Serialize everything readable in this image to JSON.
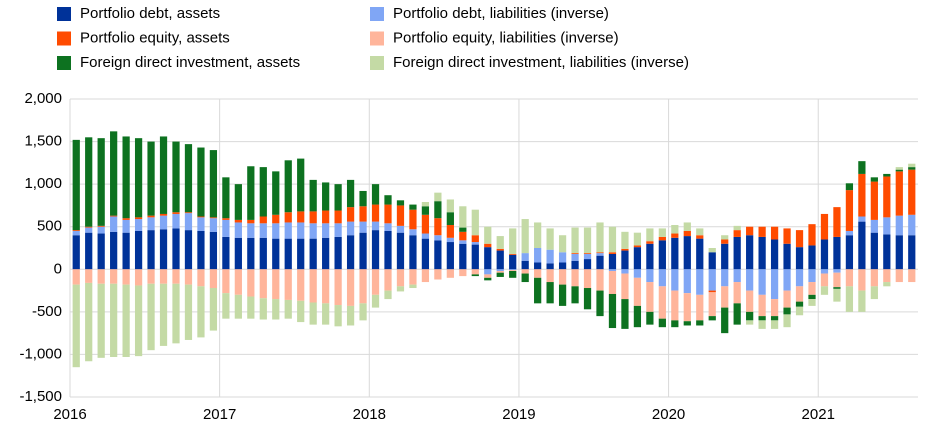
{
  "chart_data": {
    "type": "bar",
    "stacked": true,
    "categories": [
      "2016",
      null,
      null,
      null,
      null,
      null,
      null,
      null,
      null,
      null,
      null,
      null,
      "2017",
      null,
      null,
      null,
      null,
      null,
      null,
      null,
      null,
      null,
      null,
      null,
      "2018",
      null,
      null,
      null,
      null,
      null,
      null,
      null,
      null,
      null,
      null,
      null,
      "2019",
      null,
      null,
      null,
      null,
      null,
      null,
      null,
      null,
      null,
      null,
      null,
      "2020",
      null,
      null,
      null,
      null,
      null,
      null,
      null,
      null,
      null,
      null,
      null,
      "2021",
      null,
      null,
      null,
      null,
      null,
      null,
      null
    ],
    "series": [
      {
        "name": "Portfolio debt, assets",
        "color": "#003299",
        "values": [
          400,
          430,
          420,
          440,
          430,
          450,
          460,
          470,
          480,
          460,
          450,
          440,
          380,
          370,
          370,
          370,
          360,
          360,
          360,
          360,
          370,
          380,
          400,
          430,
          460,
          450,
          430,
          400,
          360,
          340,
          320,
          300,
          290,
          260,
          220,
          170,
          100,
          80,
          70,
          80,
          100,
          120,
          160,
          180,
          220,
          260,
          300,
          340,
          370,
          390,
          360,
          200,
          300,
          380,
          400,
          380,
          350,
          300,
          260,
          280,
          350,
          380,
          400,
          560,
          430,
          410,
          400,
          400
        ]
      },
      {
        "name": "Portfolio debt, liabilities (inverse)",
        "color": "#80a6f5",
        "values": [
          50,
          60,
          80,
          180,
          150,
          140,
          150,
          160,
          170,
          200,
          160,
          160,
          200,
          180,
          170,
          170,
          180,
          190,
          190,
          180,
          170,
          160,
          160,
          130,
          100,
          90,
          80,
          70,
          60,
          60,
          50,
          40,
          30,
          -60,
          -20,
          -10,
          90,
          170,
          160,
          120,
          80,
          60,
          30,
          -20,
          -50,
          -100,
          -150,
          -200,
          -250,
          -280,
          -300,
          -250,
          -200,
          -150,
          -250,
          -300,
          -350,
          -250,
          -200,
          -150,
          -50,
          -40,
          50,
          60,
          150,
          200,
          230,
          240
        ]
      },
      {
        "name": "Portfolio equity, assets",
        "color": "#ff4b00",
        "values": [
          10,
          10,
          10,
          10,
          20,
          20,
          20,
          20,
          20,
          10,
          10,
          10,
          20,
          30,
          40,
          80,
          100,
          120,
          130,
          140,
          150,
          150,
          170,
          180,
          200,
          220,
          240,
          230,
          220,
          200,
          150,
          100,
          80,
          40,
          20,
          10,
          0,
          0,
          0,
          0,
          10,
          10,
          10,
          20,
          20,
          20,
          30,
          40,
          50,
          60,
          40,
          -20,
          50,
          80,
          100,
          120,
          150,
          180,
          200,
          250,
          300,
          350,
          480,
          500,
          450,
          480,
          520,
          530
        ]
      },
      {
        "name": "Portfolio equity, liabilities (inverse)",
        "color": "#ffb59b",
        "values": [
          -180,
          -160,
          -170,
          -170,
          -180,
          -190,
          -170,
          -170,
          -170,
          -180,
          -200,
          -220,
          -280,
          -300,
          -320,
          -340,
          -350,
          -360,
          -370,
          -390,
          -400,
          -420,
          -430,
          -400,
          -300,
          -250,
          -200,
          -180,
          -150,
          -120,
          -100,
          -80,
          -60,
          -40,
          -20,
          -10,
          -50,
          -100,
          -150,
          -180,
          -200,
          -220,
          -250,
          -270,
          -300,
          -330,
          -350,
          -380,
          -350,
          -330,
          -300,
          -280,
          -250,
          -250,
          -250,
          -250,
          -200,
          -200,
          -180,
          -150,
          -150,
          -170,
          -200,
          -250,
          -200,
          -150,
          -150,
          -150
        ]
      },
      {
        "name": "Foreign direct investment, assets",
        "color": "#0d7220",
        "values": [
          1060,
          1050,
          1030,
          990,
          960,
          930,
          870,
          910,
          830,
          800,
          810,
          790,
          480,
          420,
          630,
          580,
          510,
          610,
          620,
          370,
          330,
          310,
          320,
          180,
          240,
          110,
          60,
          60,
          100,
          200,
          150,
          50,
          -20,
          -30,
          -50,
          -80,
          -100,
          -300,
          -250,
          -250,
          -200,
          -250,
          -300,
          -400,
          -350,
          -250,
          -150,
          -100,
          -80,
          -50,
          -60,
          -50,
          -300,
          -250,
          -100,
          -50,
          -50,
          -80,
          -60,
          -50,
          0,
          -20,
          80,
          150,
          50,
          30,
          20,
          30
        ]
      },
      {
        "name": "Foreign direct investment, liabilities (inverse)",
        "color": "#c4daa5",
        "values": [
          -970,
          -920,
          -870,
          -860,
          -850,
          -830,
          -780,
          -730,
          -700,
          -650,
          -600,
          -500,
          -300,
          -280,
          -260,
          -250,
          -240,
          -220,
          -250,
          -260,
          -250,
          -250,
          -230,
          -200,
          -150,
          -100,
          -60,
          -40,
          50,
          100,
          150,
          250,
          300,
          200,
          150,
          300,
          400,
          300,
          250,
          200,
          300,
          300,
          350,
          300,
          200,
          150,
          150,
          100,
          100,
          100,
          80,
          50,
          50,
          50,
          -50,
          -100,
          -100,
          -150,
          -100,
          -80,
          -100,
          -150,
          -300,
          -250,
          -150,
          -50,
          30,
          40
        ]
      }
    ],
    "ylim": [
      -1500,
      2000
    ],
    "yticks": [
      {
        "value": -1500,
        "label": "-1,500"
      },
      {
        "value": -1000,
        "label": "-1,000"
      },
      -500,
      0,
      500,
      {
        "value": 1000,
        "label": "1,000"
      },
      {
        "value": 1500,
        "label": "1,500"
      },
      {
        "value": 2000,
        "label": "2,000"
      }
    ],
    "grid": true
  }
}
